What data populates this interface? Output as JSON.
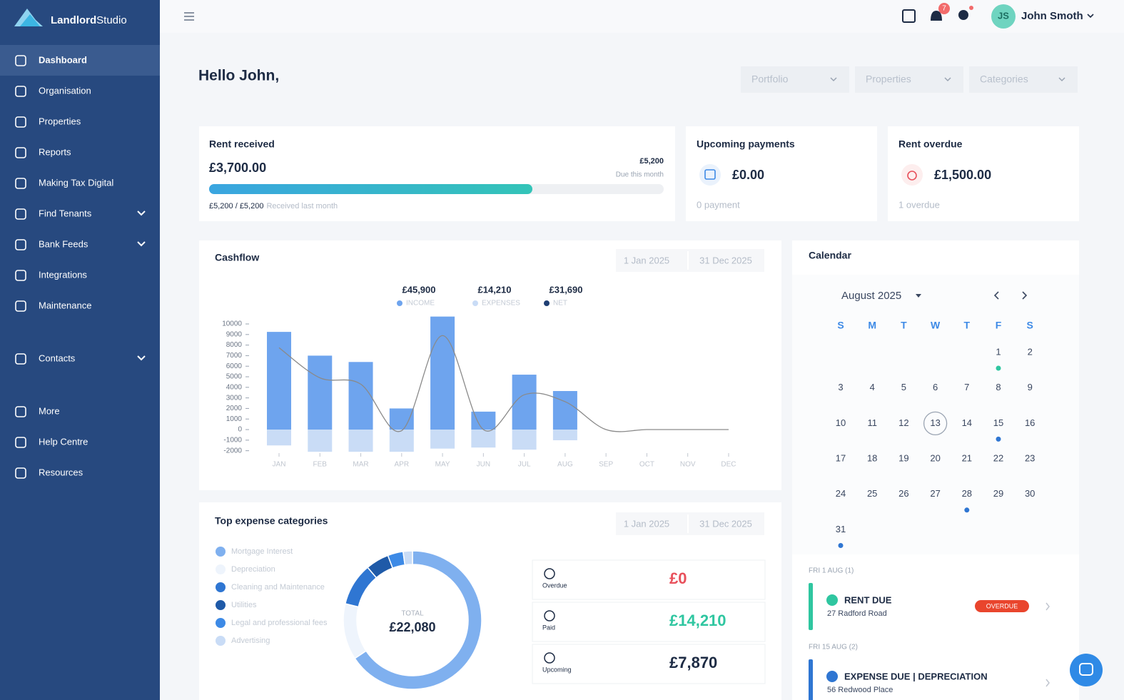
{
  "sidebar": {
    "brand_bold": "Landlord",
    "brand_light": "Studio",
    "nav": [
      "Dashboard",
      "Organisation",
      "Properties",
      "Reports",
      "Making Tax Digital",
      "Find Tenants",
      "Bank Feeds",
      "Integrations",
      "Maintenance",
      "Contacts",
      "More",
      "Help Centre",
      "Resources"
    ]
  },
  "header": {
    "notifications": "7",
    "user_initials": "JS",
    "user_name": "John Smoth"
  },
  "greeting": "Hello John,",
  "filters": [
    "Portfolio",
    "Properties",
    "Categories"
  ],
  "cards": [
    {
      "title": "Rent received",
      "amount": "£3,700.00",
      "target": "£5,200",
      "target_note": "Due this month",
      "last_month": "£5,200 / £5,200",
      "last_month_note": "Received last month"
    },
    {
      "title": "Upcoming payments",
      "amount": "£0.00",
      "note": "0 payment"
    },
    {
      "title": "Rent overdue",
      "amount": "£1,500.00",
      "note": "1 overdue"
    }
  ],
  "cashflow": {
    "title": "Cashflow",
    "date_from": "1 Jan 2025",
    "date_to": "31 Dec 2025",
    "chart": {
      "type": "bar",
      "categories": [
        "JAN",
        "FEB",
        "MAR",
        "APR",
        "MAY",
        "JUN",
        "JUL",
        "AUG",
        "SEP",
        "OCT",
        "NOV",
        "DEC"
      ],
      "series": [
        {
          "name": "INCOME",
          "total": "£45,900",
          "color": "#6ea4ee",
          "values": [
            9250,
            7000,
            6400,
            2000,
            10700,
            1700,
            5200,
            3650,
            0,
            0,
            0,
            0
          ]
        },
        {
          "name": "EXPENSES",
          "total": "£14,210",
          "color": "#c9dcf6",
          "values": [
            -1500,
            -2100,
            -2100,
            -2100,
            -1800,
            -1700,
            -1900,
            -1010,
            0,
            0,
            0,
            0
          ]
        },
        {
          "name": "NET",
          "total": "£31,690",
          "color": "#1f3f73",
          "line_color": "#8a8a8a",
          "type": "line",
          "values": [
            7750,
            4900,
            4300,
            -100,
            8900,
            0,
            3300,
            2640,
            0,
            0,
            0,
            0
          ]
        }
      ],
      "ylim": [
        -2200,
        11000
      ],
      "yticks": [
        10000,
        9000,
        8000,
        7000,
        6000,
        5000,
        4000,
        3000,
        2000,
        1000,
        0,
        -1000,
        -2000
      ]
    }
  },
  "expenses": {
    "title": "Top expense categories",
    "date_from": "1 Jan 2025",
    "date_to": "31 Dec 2025",
    "chart": {
      "type": "pie",
      "categories": [
        "Mortgage Interest",
        "Depreciation",
        "Cleaning and Maintenance",
        "Utilities",
        "Legal and professional fees",
        "Advertising"
      ],
      "values": [
        14500,
        2900,
        2200,
        1200,
        800,
        480
      ],
      "colors": [
        "#7fb0ef",
        "#eef4fc",
        "#2f76d2",
        "#1f5aa8",
        "#3d8ae6",
        "#c9dcf6"
      ],
      "total_label": "TOTAL",
      "total": "£22,080"
    },
    "summary": [
      {
        "label": "Overdue",
        "amount": "£0",
        "color": "#e8505b"
      },
      {
        "label": "Paid",
        "amount": "£14,210",
        "color": "#2fc6a0"
      },
      {
        "label": "Upcoming",
        "amount": "£7,870",
        "color": "#1d2b44"
      }
    ]
  },
  "calendar": {
    "title": "Calendar",
    "month": "August 2025",
    "weekdays": [
      "S",
      "M",
      "T",
      "W",
      "T",
      "F",
      "S"
    ],
    "days": [
      1,
      2,
      3,
      4,
      5,
      6,
      7,
      8,
      9,
      10,
      11,
      12,
      13,
      14,
      15,
      16,
      17,
      18,
      19,
      20,
      21,
      22,
      23,
      24,
      25,
      26,
      27,
      28,
      29,
      30,
      31
    ],
    "today": 13,
    "event_dots": [
      {
        "day": 1,
        "color": "#2fc6a0"
      },
      {
        "day": 15,
        "color": "#2f76d2"
      },
      {
        "day": 28,
        "color": "#2f76d2"
      },
      {
        "day": 31,
        "color": "#2f76d2"
      }
    ],
    "events": [
      {
        "date": "FRI 1 AUG (1)",
        "title": "RENT DUE",
        "address": "27 Radford Road",
        "badge": "OVERDUE",
        "color": "#2fc6a0"
      },
      {
        "date": "FRI 15 AUG (2)",
        "title": "EXPENSE DUE | DEPRECIATION",
        "address": "56 Redwood Place",
        "color": "#2f76d2"
      }
    ]
  }
}
